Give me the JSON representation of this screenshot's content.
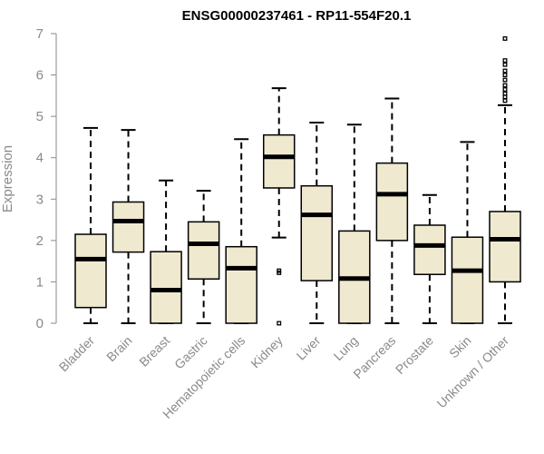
{
  "chart_data": {
    "type": "boxplot",
    "title": "ENSG00000237461 - RP11-554F20.1",
    "xlabel": "",
    "ylabel": "Expression",
    "ylim": [
      0,
      7
    ],
    "yticks": [
      0,
      1,
      2,
      3,
      4,
      5,
      6,
      7
    ],
    "categories": [
      "Bladder",
      "Brain",
      "Breast",
      "Gastric",
      "Hematopoietic cells",
      "Kidney",
      "Liver",
      "Lung",
      "Pancreas",
      "Prostate",
      "Skin",
      "Unknown / Other"
    ],
    "boxes": [
      {
        "category": "Bladder",
        "min": 0,
        "q1": 0.38,
        "median": 1.55,
        "q3": 2.15,
        "max": 4.72,
        "outliers": []
      },
      {
        "category": "Brain",
        "min": 0,
        "q1": 1.72,
        "median": 2.47,
        "q3": 2.93,
        "max": 4.67,
        "outliers": []
      },
      {
        "category": "Breast",
        "min": 0,
        "q1": 0,
        "median": 0.8,
        "q3": 1.73,
        "max": 3.45,
        "outliers": []
      },
      {
        "category": "Gastric",
        "min": 0,
        "q1": 1.07,
        "median": 1.92,
        "q3": 2.45,
        "max": 3.2,
        "outliers": []
      },
      {
        "category": "Hematopoietic cells",
        "min": 0,
        "q1": 0,
        "median": 1.33,
        "q3": 1.85,
        "max": 4.45,
        "outliers": []
      },
      {
        "category": "Kidney",
        "min": 2.07,
        "q1": 3.27,
        "median": 4.02,
        "q3": 4.55,
        "max": 5.68,
        "outliers": [
          1.27,
          1.22,
          0
        ]
      },
      {
        "category": "Liver",
        "min": 0,
        "q1": 1.03,
        "median": 2.62,
        "q3": 3.32,
        "max": 4.85,
        "outliers": []
      },
      {
        "category": "Lung",
        "min": 0,
        "q1": 0,
        "median": 1.08,
        "q3": 2.23,
        "max": 4.8,
        "outliers": []
      },
      {
        "category": "Pancreas",
        "min": 0,
        "q1": 2.0,
        "median": 3.12,
        "q3": 3.87,
        "max": 5.43,
        "outliers": []
      },
      {
        "category": "Prostate",
        "min": 0,
        "q1": 1.18,
        "median": 1.88,
        "q3": 2.37,
        "max": 3.1,
        "outliers": []
      },
      {
        "category": "Skin",
        "min": 0,
        "q1": 0,
        "median": 1.27,
        "q3": 2.08,
        "max": 4.38,
        "outliers": []
      },
      {
        "category": "Unknown / Other",
        "min": 0,
        "q1": 1.0,
        "median": 2.03,
        "q3": 2.7,
        "max": 5.27,
        "outliers": [
          5.38,
          5.47,
          5.55,
          5.65,
          5.75,
          5.88,
          6.0,
          6.1,
          6.25,
          6.35,
          6.88
        ]
      }
    ],
    "box_fill": "#efe9d0",
    "box_stroke": "#000000",
    "axis_color": "#8a8a8a"
  }
}
